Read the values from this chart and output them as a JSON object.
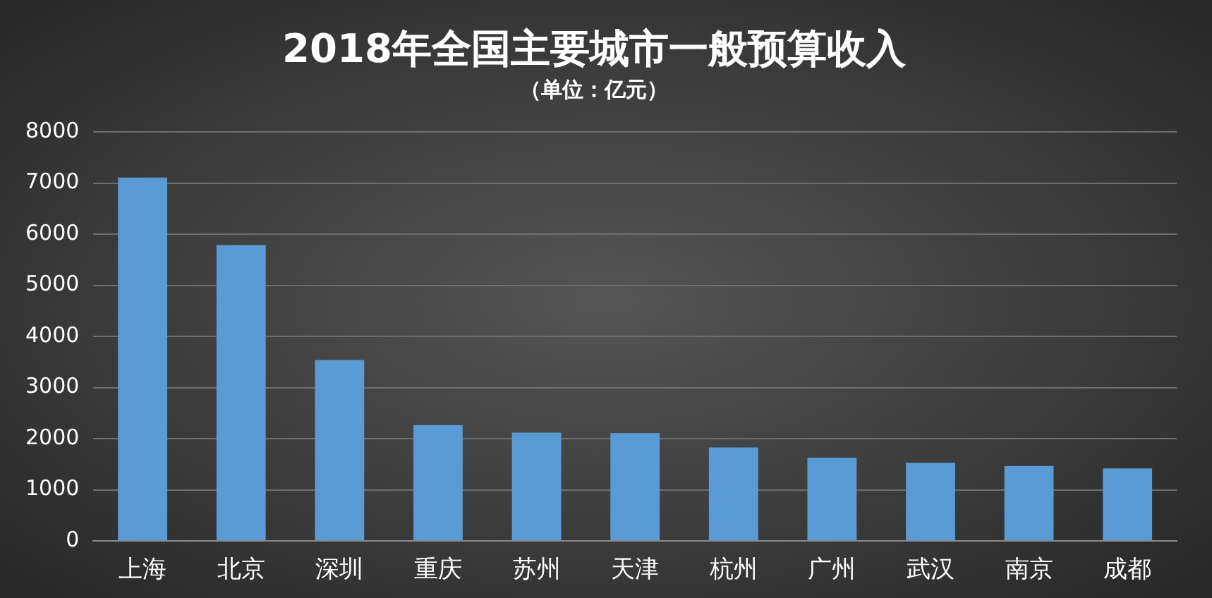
{
  "chart_data": {
    "type": "bar",
    "title": "2018年全国主要城市一般预算收入",
    "subtitle": "（单位：亿元）",
    "categories": [
      "上海",
      "北京",
      "深圳",
      "重庆",
      "苏州",
      "天津",
      "杭州",
      "广州",
      "武汉",
      "南京",
      "成都"
    ],
    "values": [
      7110,
      5790,
      3540,
      2270,
      2120,
      2110,
      1830,
      1630,
      1530,
      1470,
      1420
    ],
    "color": "#5b9bd5",
    "ylim": [
      0,
      8000
    ],
    "yticks": [
      0,
      1000,
      2000,
      3000,
      4000,
      5000,
      6000,
      7000,
      8000
    ],
    "grid": "y"
  }
}
